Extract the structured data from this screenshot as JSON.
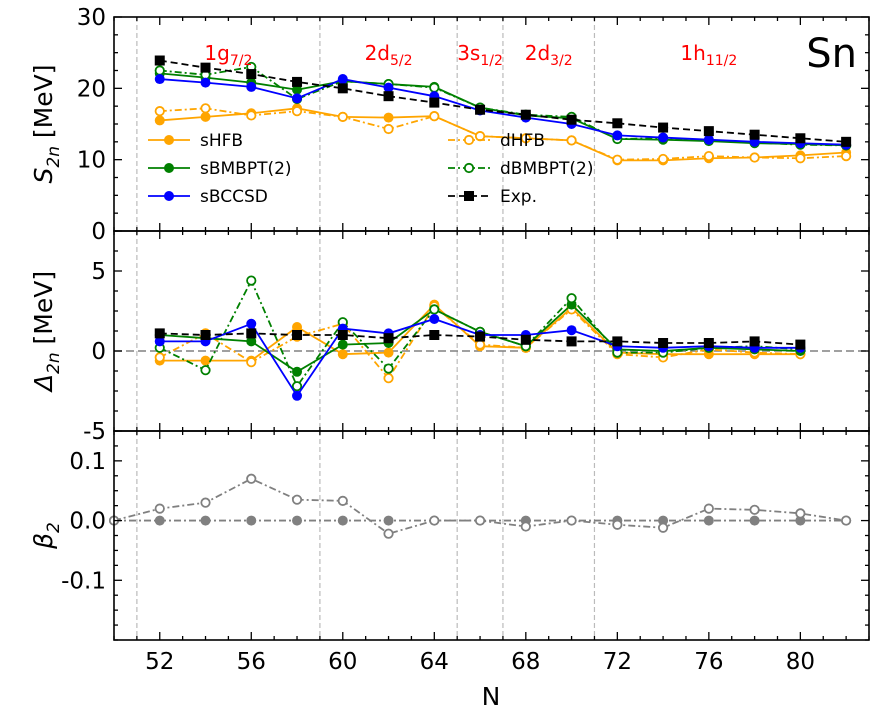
{
  "chart_data": {
    "type": "line",
    "element": "Sn",
    "xlabel": "N",
    "xlim": [
      50,
      83
    ],
    "xticks": [
      52,
      56,
      60,
      64,
      68,
      72,
      76,
      80
    ],
    "xtick_labels": [
      "52",
      "56",
      "60",
      "64",
      "68",
      "72",
      "76",
      "80"
    ],
    "shell_boundaries": [
      51,
      59,
      65,
      67,
      71,
      83
    ],
    "shell_labels": [
      {
        "main": "1g",
        "sub": "7/2",
        "x": 55
      },
      {
        "main": "2d",
        "sub": "5/2",
        "x": 62
      },
      {
        "main": "3s",
        "sub": "1/2",
        "x": 66
      },
      {
        "main": "2d",
        "sub": "3/2",
        "x": 69
      },
      {
        "main": "1h",
        "sub": "11/2",
        "x": 76
      }
    ],
    "colors": {
      "sHFB": "#FFA500",
      "sBMBPT": "#008000",
      "sBCCSD": "#0000FF",
      "exp": "#000000",
      "beta": "#808080",
      "shell_text": "#FF0000",
      "grid": "#BBBBBB"
    },
    "panels": [
      {
        "id": "S2n",
        "ylabel_main": "S",
        "ylabel_sub": "2n",
        "ylabel_unit": "[MeV]",
        "ylim": [
          0,
          30
        ],
        "yticks": [
          0,
          10,
          20,
          30
        ],
        "ytick_labels": [
          "0",
          "10",
          "20",
          "30"
        ],
        "legend": [
          {
            "label": "sHFB",
            "series": "sHFB"
          },
          {
            "label": "dHFB",
            "series": "dHFB"
          },
          {
            "label": "sBMBPT(2)",
            "series": "sBMBPT2"
          },
          {
            "label": "dBMBPT(2)",
            "series": "dBMBPT2"
          },
          {
            "label": "sBCCSD",
            "series": "sBCCSD"
          },
          {
            "label": "Exp.",
            "series": "Exp"
          }
        ],
        "series": [
          {
            "name": "sHFB",
            "key": "sHFB",
            "color": "#FFA500",
            "style": "solid",
            "marker": "filled-circle",
            "x": [
              52,
              54,
              56,
              58,
              60,
              62,
              64,
              66,
              68,
              70,
              72,
              74,
              76,
              78,
              80,
              82
            ],
            "y": [
              15.5,
              16.0,
              16.5,
              17.2,
              16.0,
              15.9,
              16.1,
              13.3,
              13.0,
              12.7,
              9.9,
              9.9,
              10.2,
              10.3,
              10.6,
              11.0
            ]
          },
          {
            "name": "dHFB",
            "key": "dHFB",
            "color": "#FFA500",
            "style": "dashdot",
            "marker": "open-circle",
            "x": [
              52,
              54,
              56,
              58,
              60,
              62,
              64,
              66,
              68,
              70,
              72,
              74,
              76,
              78,
              80,
              82
            ],
            "y": [
              16.8,
              17.2,
              16.2,
              16.8,
              16.0,
              14.3,
              16.1,
              13.3,
              13.0,
              12.7,
              10.0,
              10.1,
              10.5,
              10.3,
              10.2,
              10.5
            ]
          },
          {
            "name": "sBMBPT(2)",
            "key": "sBMBPT2",
            "color": "#008000",
            "style": "solid",
            "marker": "filled-circle",
            "x": [
              52,
              54,
              56,
              58,
              60,
              62,
              64,
              66,
              68,
              70,
              72,
              74,
              76,
              78,
              80,
              82
            ],
            "y": [
              22.1,
              21.5,
              20.8,
              19.8,
              21.0,
              20.6,
              20.2,
              17.3,
              16.2,
              15.8,
              12.9,
              12.8,
              12.6,
              12.3,
              12.2,
              12.0
            ]
          },
          {
            "name": "dBMBPT(2)",
            "key": "dBMBPT2",
            "color": "#008000",
            "style": "dashdot",
            "marker": "open-circle",
            "x": [
              52,
              54,
              56,
              58,
              60,
              62,
              64,
              66,
              68,
              70,
              72,
              74,
              76,
              78,
              80,
              82
            ],
            "y": [
              22.5,
              21.9,
              23.0,
              18.5,
              21.0,
              20.6,
              20.1,
              17.3,
              16.3,
              16.0,
              12.9,
              13.0,
              12.7,
              12.4,
              12.1,
              12.0
            ]
          },
          {
            "name": "sBCCSD",
            "key": "sBCCSD",
            "color": "#0000FF",
            "style": "solid",
            "marker": "filled-circle",
            "x": [
              52,
              54,
              56,
              58,
              60,
              62,
              64,
              66,
              68,
              70,
              72,
              74,
              76,
              78,
              80,
              82
            ],
            "y": [
              21.3,
              20.8,
              20.2,
              18.6,
              21.3,
              20.1,
              18.9,
              16.9,
              15.9,
              15.0,
              13.4,
              13.1,
              12.8,
              12.5,
              12.3,
              12.1
            ]
          },
          {
            "name": "Exp.",
            "key": "Exp",
            "color": "#000000",
            "style": "dashed",
            "marker": "filled-square",
            "x": [
              52,
              54,
              56,
              58,
              60,
              62,
              64,
              66,
              68,
              70,
              72,
              74,
              76,
              78,
              80,
              82
            ],
            "y": [
              23.9,
              22.9,
              22.0,
              20.9,
              20.0,
              18.9,
              18.0,
              17.0,
              16.3,
              15.6,
              15.1,
              14.5,
              14.0,
              13.5,
              13.0,
              12.5
            ]
          }
        ]
      },
      {
        "id": "Delta2n",
        "ylabel_main": "Δ",
        "ylabel_sub": "2n",
        "ylabel_unit": "[MeV]",
        "ylim": [
          -5,
          7.5
        ],
        "yticks": [
          -5,
          0,
          5
        ],
        "ytick_labels": [
          "-5",
          "0",
          "5"
        ],
        "zero_line": true,
        "series": [
          {
            "name": "sHFB",
            "key": "sHFB",
            "color": "#FFA500",
            "style": "solid",
            "marker": "filled-circle",
            "x": [
              52,
              54,
              56,
              58,
              60,
              62,
              64,
              66,
              68,
              70,
              72,
              74,
              76,
              78,
              80
            ],
            "y": [
              -0.6,
              -0.6,
              -0.6,
              1.5,
              -0.2,
              -0.1,
              2.9,
              0.3,
              0.2,
              2.7,
              -0.1,
              -0.2,
              -0.2,
              -0.2,
              -0.2
            ]
          },
          {
            "name": "dHFB",
            "key": "dHFB",
            "color": "#FFA500",
            "style": "dashdot",
            "marker": "open-circle",
            "x": [
              52,
              54,
              56,
              58,
              60,
              62,
              64,
              66,
              68,
              70,
              72,
              74,
              76,
              78,
              80
            ],
            "y": [
              -0.4,
              1.1,
              -0.7,
              0.9,
              1.7,
              -1.7,
              2.8,
              0.4,
              0.2,
              2.6,
              -0.2,
              -0.4,
              0.1,
              -0.1,
              -0.2
            ]
          },
          {
            "name": "sBMBPT(2)",
            "key": "sBMBPT2",
            "color": "#008000",
            "style": "solid",
            "marker": "filled-circle",
            "x": [
              52,
              54,
              56,
              58,
              60,
              62,
              64,
              66,
              68,
              70,
              72,
              74,
              76,
              78,
              80
            ],
            "y": [
              1.0,
              0.8,
              0.6,
              -1.3,
              0.4,
              0.5,
              2.6,
              1.2,
              0.3,
              2.9,
              0.1,
              0.0,
              0.2,
              0.1,
              0.0
            ]
          },
          {
            "name": "dBMBPT(2)",
            "key": "dBMBPT2",
            "color": "#008000",
            "style": "dashdot",
            "marker": "open-circle",
            "x": [
              52,
              54,
              56,
              58,
              60,
              62,
              64,
              66,
              68,
              70,
              72,
              74,
              76,
              78,
              80
            ],
            "y": [
              0.2,
              -1.2,
              4.4,
              -2.2,
              1.8,
              -1.1,
              2.6,
              1.2,
              0.3,
              3.3,
              -0.1,
              -0.1,
              0.2,
              0.3,
              0.1
            ]
          },
          {
            "name": "sBCCSD",
            "key": "sBCCSD",
            "color": "#0000FF",
            "style": "solid",
            "marker": "filled-circle",
            "x": [
              52,
              54,
              56,
              58,
              60,
              62,
              64,
              66,
              68,
              70,
              72,
              74,
              76,
              78,
              80
            ],
            "y": [
              0.6,
              0.6,
              1.7,
              -2.8,
              1.4,
              1.1,
              2.0,
              1.0,
              1.0,
              1.3,
              0.3,
              0.2,
              0.3,
              0.2,
              0.2
            ]
          },
          {
            "name": "Exp.",
            "key": "Exp",
            "color": "#000000",
            "style": "dashed",
            "marker": "filled-square",
            "x": [
              52,
              54,
              56,
              58,
              60,
              62,
              64,
              66,
              68,
              70,
              72,
              74,
              76,
              78,
              80
            ],
            "y": [
              1.1,
              1.0,
              1.1,
              1.0,
              1.0,
              0.8,
              1.0,
              0.9,
              0.7,
              0.6,
              0.6,
              0.5,
              0.5,
              0.6,
              0.4
            ]
          }
        ]
      },
      {
        "id": "beta2",
        "ylabel_main": "β",
        "ylabel_sub": "2",
        "ylabel_unit": "",
        "ylim": [
          -0.2,
          0.15
        ],
        "yticks": [
          -0.1,
          0.0,
          0.1
        ],
        "ytick_labels": [
          "-0.1",
          "0.0",
          "0.1"
        ],
        "series": [
          {
            "name": "sHFB",
            "key": "beta_s",
            "color": "#808080",
            "style": "dashdot",
            "marker": "filled-circle",
            "x": [
              50,
              52,
              54,
              56,
              58,
              60,
              62,
              64,
              66,
              68,
              70,
              72,
              74,
              76,
              78,
              80,
              82
            ],
            "y": [
              0,
              0,
              0,
              0,
              0,
              0,
              0,
              0,
              0,
              0,
              0,
              0,
              0,
              0,
              0,
              0,
              0
            ]
          },
          {
            "name": "dHFB",
            "key": "beta_d",
            "color": "#808080",
            "style": "dashdot",
            "marker": "open-circle",
            "x": [
              50,
              52,
              54,
              56,
              58,
              60,
              62,
              64,
              66,
              68,
              70,
              72,
              74,
              76,
              78,
              80,
              82
            ],
            "y": [
              0,
              0.02,
              0.03,
              0.07,
              0.035,
              0.033,
              -0.022,
              0,
              0,
              -0.01,
              0,
              -0.007,
              -0.012,
              0.02,
              0.018,
              0.012,
              0
            ]
          }
        ]
      }
    ]
  }
}
